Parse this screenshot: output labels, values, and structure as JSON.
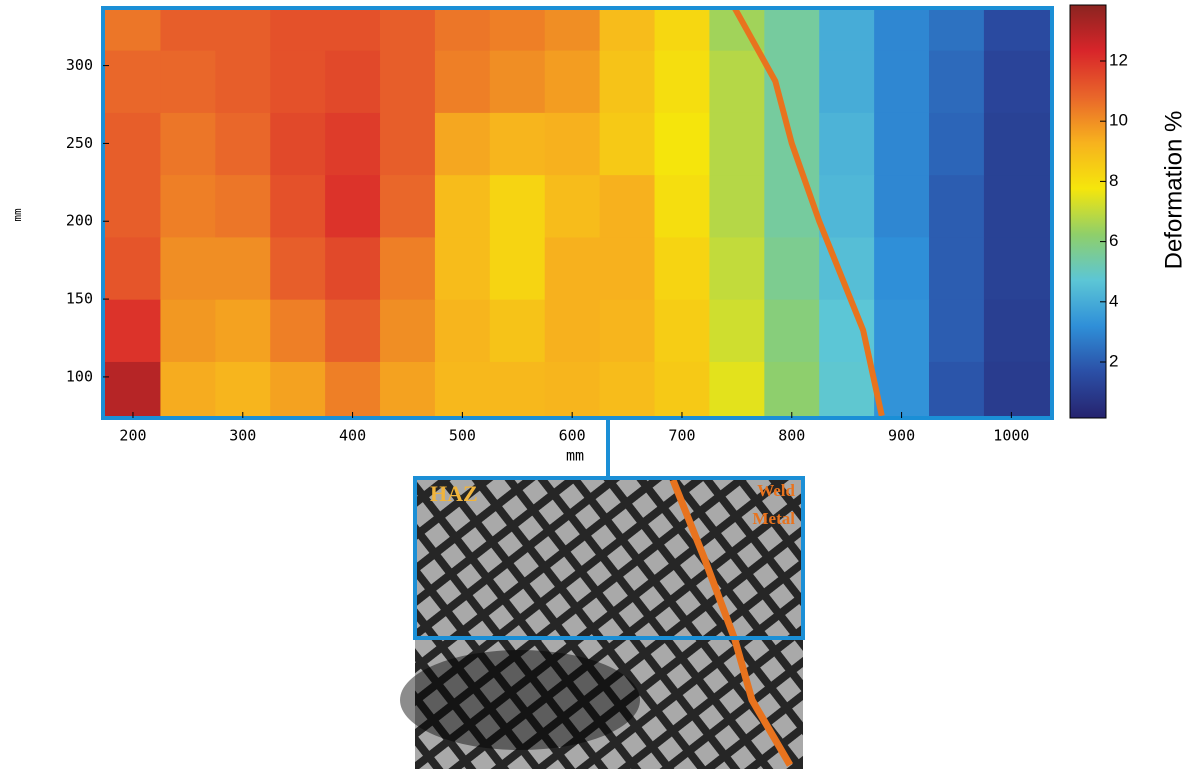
{
  "chart_data": {
    "type": "contour",
    "x_label": "mm",
    "y_label": "mm",
    "colorbar_label": "Deformation %",
    "xlim": [
      172.7,
      1037
    ],
    "ylim": [
      73.6,
      337
    ],
    "zlim": [
      0.14,
      13.86
    ],
    "xticks": [
      200,
      300,
      400,
      500,
      600,
      700,
      800,
      900,
      1000
    ],
    "yticks": [
      100,
      150,
      200,
      250,
      300
    ],
    "zticks": [
      2,
      4,
      6,
      8,
      10,
      12
    ],
    "colormap": [
      "#26236e",
      "#2b4fa6",
      "#2f8fd8",
      "#5cc6d6",
      "#8fcf6a",
      "#f5e60c",
      "#f7b21e",
      "#e9662a",
      "#d8252a",
      "#8b2420"
    ],
    "x": [
      200,
      250,
      300,
      350,
      400,
      450,
      500,
      550,
      600,
      650,
      700,
      750,
      800,
      850,
      900,
      950,
      1000
    ],
    "y": [
      90,
      130,
      170,
      210,
      250,
      290,
      330
    ],
    "z": [
      [
        13,
        9.4,
        9.2,
        9.6,
        10.3,
        9.6,
        9.1,
        9.1,
        9.2,
        9,
        8.6,
        7.5,
        6.2,
        4.8,
        3.3,
        1.8,
        1
      ],
      [
        12,
        9.8,
        9.6,
        10.3,
        11,
        10,
        9.2,
        8.8,
        9.3,
        9.2,
        8.5,
        7.2,
        6,
        4.7,
        3.3,
        2,
        1.1
      ],
      [
        11.2,
        10,
        10,
        11,
        11.5,
        10.3,
        9,
        8.3,
        9.3,
        9.3,
        8.3,
        7,
        5.7,
        4.5,
        3.2,
        2,
        1.2
      ],
      [
        11,
        10.3,
        10.5,
        11.3,
        12,
        10.8,
        9,
        8.3,
        9,
        9.3,
        8,
        6.8,
        5.5,
        4.3,
        3,
        2,
        1.2
      ],
      [
        11,
        10.5,
        10.8,
        11.5,
        11.8,
        11,
        9.5,
        9.2,
        9.3,
        8.6,
        7.8,
        6.8,
        5.5,
        4.2,
        3,
        2.2,
        1.2
      ],
      [
        10.8,
        10.8,
        11,
        11.3,
        11.5,
        11,
        10.3,
        10,
        9.7,
        8.8,
        8,
        6.8,
        5.5,
        4,
        3,
        2.3,
        1.3
      ],
      [
        10.5,
        11,
        11,
        11.3,
        11.3,
        11,
        10.5,
        10.3,
        10,
        9,
        8.2,
        6.5,
        5.5,
        4,
        3,
        2.5,
        1.5
      ]
    ],
    "weld_line": {
      "color": "#e8731e",
      "x": [
        748,
        785,
        800,
        825,
        865,
        882
      ],
      "y": [
        337,
        290,
        250,
        200,
        130,
        75
      ]
    },
    "frame_color": "#1b8fd6",
    "annotations": {
      "haz": "HAZ",
      "weld": "Weld",
      "metal": "Metal"
    }
  }
}
